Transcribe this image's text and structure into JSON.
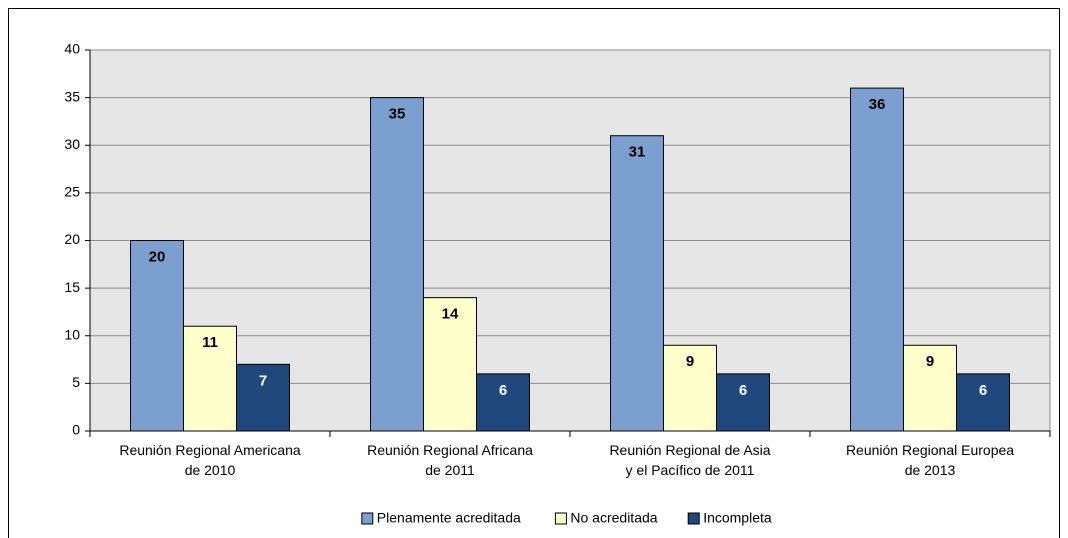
{
  "chart_data": {
    "type": "bar",
    "categories": [
      [
        "Reunión Regional Americana",
        "de 2010"
      ],
      [
        "Reunión Regional Africana",
        "de 2011"
      ],
      [
        "Reunión Regional de Asia",
        "y el Pacífico de 2011"
      ],
      [
        "Reunión Regional Europea",
        "de 2013"
      ]
    ],
    "series": [
      {
        "name": "Plenamente acreditada",
        "color": "#7b9fcf",
        "values": [
          20,
          35,
          31,
          36
        ]
      },
      {
        "name": "No acreditada",
        "color": "#ffffcc",
        "values": [
          11,
          14,
          9,
          9
        ]
      },
      {
        "name": "Incompleta",
        "color": "#1f497d",
        "values": [
          7,
          6,
          6,
          6
        ]
      }
    ],
    "ylim": [
      0,
      40
    ],
    "yticks": [
      0,
      5,
      10,
      15,
      20,
      25,
      30,
      35,
      40
    ],
    "grid": true,
    "legend": "bottom"
  }
}
